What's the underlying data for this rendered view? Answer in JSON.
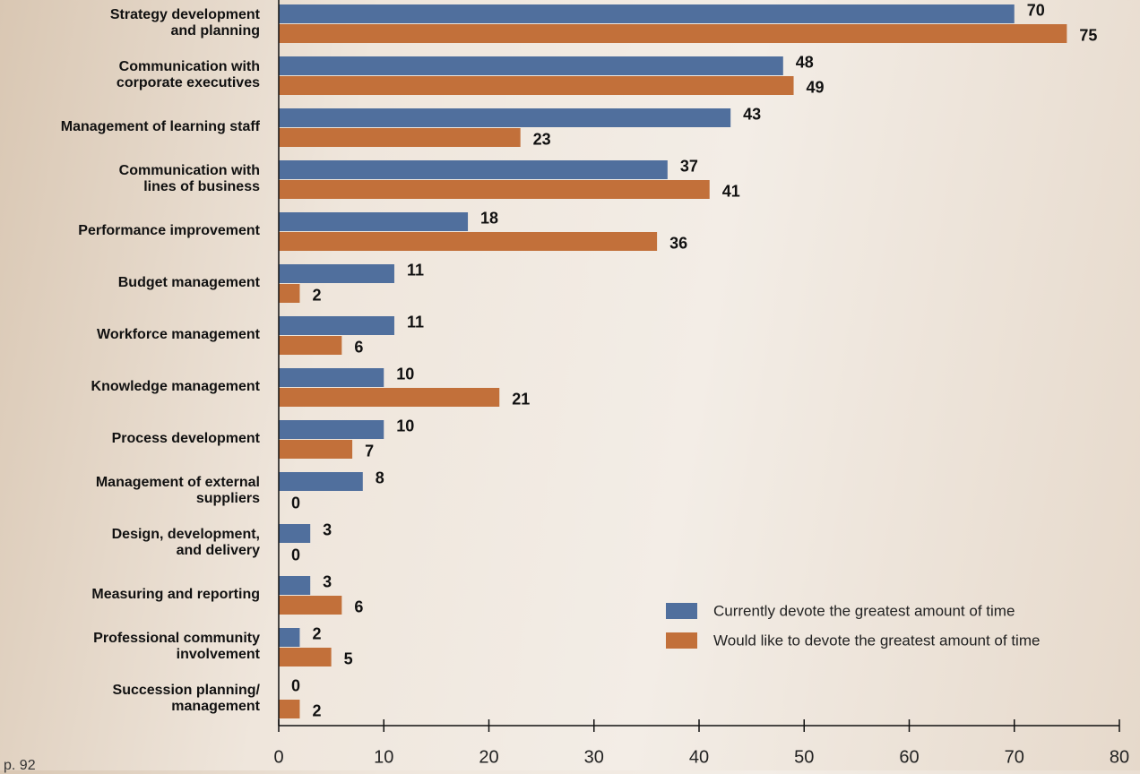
{
  "chart_data": {
    "type": "hbar",
    "categories": [
      "Strategy development\nand planning",
      "Communication with\ncorporate executives",
      "Management of learning staff",
      "Communication with\nlines of business",
      "Performance improvement",
      "Budget management",
      "Workforce management",
      "Knowledge management",
      "Process development",
      "Management of external\nsuppliers",
      "Design, development,\nand delivery",
      "Measuring and reporting",
      "Professional community\ninvolvement",
      "Succession planning/\nmanagement"
    ],
    "series": [
      {
        "name": "Currently devote the greatest amount of time",
        "color": "#506f9d",
        "values": [
          70,
          48,
          43,
          37,
          18,
          11,
          11,
          10,
          10,
          8,
          3,
          3,
          2,
          0
        ]
      },
      {
        "name": "Would like to devote the greatest amount of time",
        "color": "#c2703a",
        "values": [
          75,
          49,
          23,
          41,
          36,
          2,
          6,
          21,
          7,
          0,
          0,
          6,
          5,
          2
        ]
      }
    ],
    "xlim": [
      0,
      80
    ],
    "xticks": [
      0,
      10,
      20,
      30,
      40,
      50,
      60,
      70,
      80
    ],
    "legend": "lower right",
    "footer": "p. 92"
  }
}
